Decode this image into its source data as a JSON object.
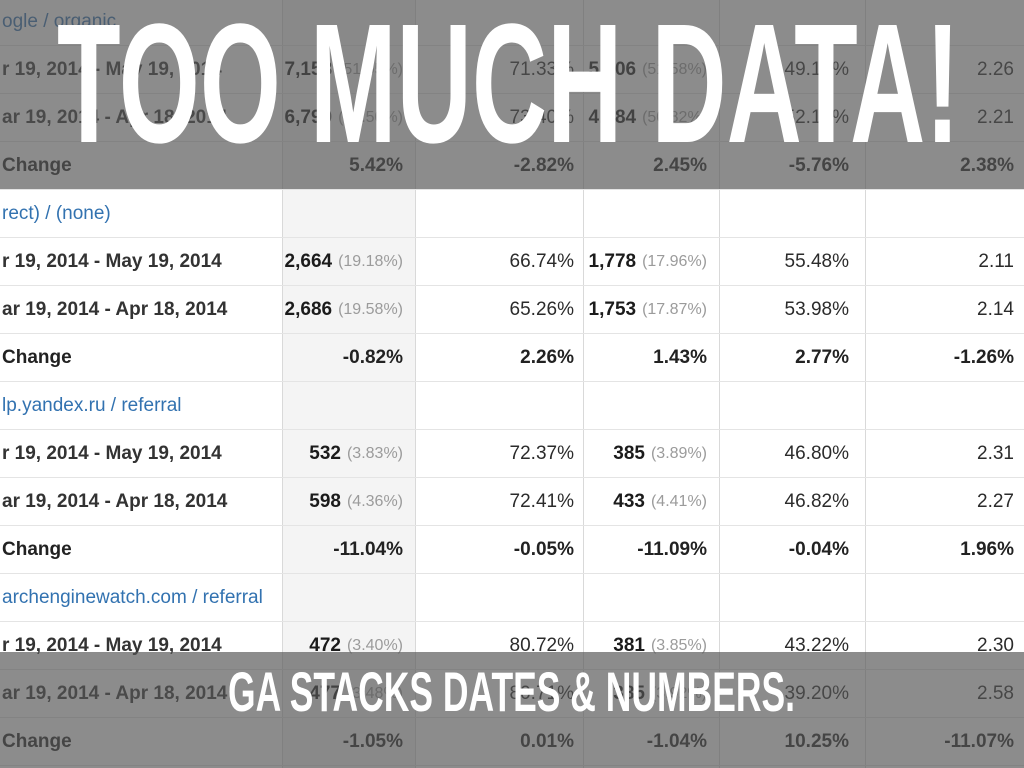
{
  "slide": {
    "title": "TOO MUCH DATA!",
    "subtitle": "GA STACKS DATES & NUMBERS.",
    "text_color": "#ffffff",
    "band_color": "#555555",
    "band_opacity": 0.68
  },
  "table": {
    "link_color": "#3272b0",
    "sorted_column_bg": "#f4f4f4",
    "gridline_color": "#d9d9d9",
    "rows": [
      {
        "type": "link",
        "label": "ogle / organic",
        "cells": [
          "",
          "",
          "",
          "",
          ""
        ]
      },
      {
        "type": "data",
        "label": "r 19, 2014 - May 19, 2014",
        "cells": [
          {
            "v": "7,158",
            "p": "(51.55%)"
          },
          "71.33%",
          {
            "v": "5,106",
            "p": "(51.58%)"
          },
          "49.13%",
          "2.26"
        ]
      },
      {
        "type": "data",
        "label": "ar 19, 2014 - Apr 18, 2014",
        "cells": [
          {
            "v": "6,790",
            "p": "(49.50%)"
          },
          "73.40%",
          {
            "v": "4,984",
            "p": "(50.82%)"
          },
          "52.13%",
          "2.21"
        ]
      },
      {
        "type": "change",
        "label": "Change",
        "cells": [
          "5.42%",
          "-2.82%",
          "2.45%",
          "-5.76%",
          "2.38%"
        ]
      },
      {
        "type": "link",
        "label": "rect) / (none)",
        "cells": [
          "",
          "",
          "",
          "",
          ""
        ]
      },
      {
        "type": "data",
        "label": "r 19, 2014 - May 19, 2014",
        "cells": [
          {
            "v": "2,664",
            "p": "(19.18%)"
          },
          "66.74%",
          {
            "v": "1,778",
            "p": "(17.96%)"
          },
          "55.48%",
          "2.11"
        ]
      },
      {
        "type": "data",
        "label": "ar 19, 2014 - Apr 18, 2014",
        "cells": [
          {
            "v": "2,686",
            "p": "(19.58%)"
          },
          "65.26%",
          {
            "v": "1,753",
            "p": "(17.87%)"
          },
          "53.98%",
          "2.14"
        ]
      },
      {
        "type": "change",
        "label": "Change",
        "cells": [
          "-0.82%",
          "2.26%",
          "1.43%",
          "2.77%",
          "-1.26%"
        ]
      },
      {
        "type": "link",
        "label": "lp.yandex.ru / referral",
        "cells": [
          "",
          "",
          "",
          "",
          ""
        ]
      },
      {
        "type": "data",
        "label": "r 19, 2014 - May 19, 2014",
        "cells": [
          {
            "v": "532",
            "p": "(3.83%)"
          },
          "72.37%",
          {
            "v": "385",
            "p": "(3.89%)"
          },
          "46.80%",
          "2.31"
        ]
      },
      {
        "type": "data",
        "label": "ar 19, 2014 - Apr 18, 2014",
        "cells": [
          {
            "v": "598",
            "p": "(4.36%)"
          },
          "72.41%",
          {
            "v": "433",
            "p": "(4.41%)"
          },
          "46.82%",
          "2.27"
        ]
      },
      {
        "type": "change",
        "label": "Change",
        "cells": [
          "-11.04%",
          "-0.05%",
          "-11.09%",
          "-0.04%",
          "1.96%"
        ]
      },
      {
        "type": "link",
        "label": "archenginewatch.com / referral",
        "cells": [
          "",
          "",
          "",
          "",
          ""
        ]
      },
      {
        "type": "data",
        "label": "r 19, 2014 - May 19, 2014",
        "cells": [
          {
            "v": "472",
            "p": "(3.40%)"
          },
          "80.72%",
          {
            "v": "381",
            "p": "(3.85%)"
          },
          "43.22%",
          "2.30"
        ]
      },
      {
        "type": "data",
        "label": "ar 19, 2014 - Apr 18, 2014",
        "cells": [
          {
            "v": "477",
            "p": "(3.48%)"
          },
          "80.71%",
          {
            "v": "385",
            "p": "(3.92%)"
          },
          "39.20%",
          "2.58"
        ]
      },
      {
        "type": "change",
        "label": "Change",
        "cells": [
          "-1.05%",
          "0.01%",
          "-1.04%",
          "10.25%",
          "-11.07%"
        ]
      }
    ]
  }
}
